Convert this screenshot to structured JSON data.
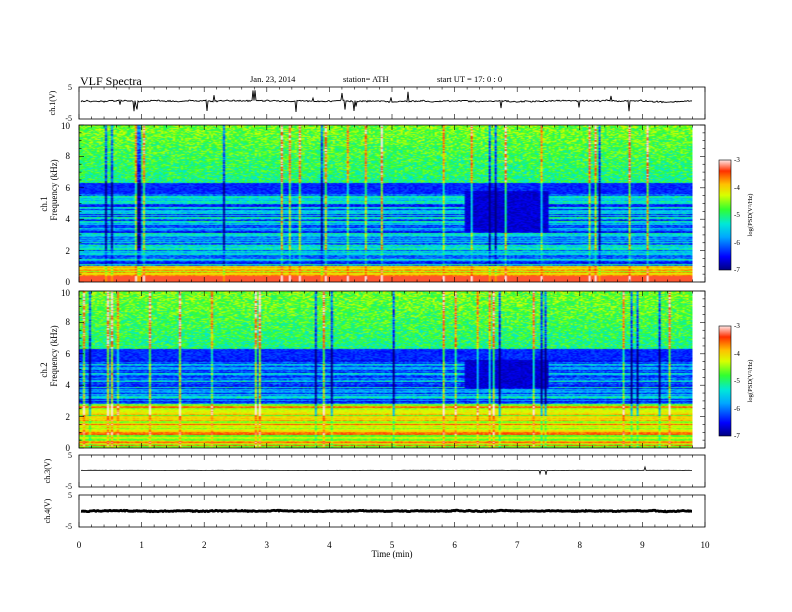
{
  "header": {
    "title": "VLF  Spectra",
    "date": "Jan.  23,  2014",
    "station": "station= ATH",
    "start": "start  UT  =    17: 0  : 0"
  },
  "chart_data": {
    "type": "heatmap",
    "xlabel": "Time  (min)",
    "xlim": [
      0,
      10
    ],
    "x_ticks": [
      "0",
      "1",
      "2",
      "3",
      "4",
      "5",
      "6",
      "7",
      "8",
      "9",
      "10"
    ],
    "data_end_min": 9.8,
    "panels": [
      {
        "id": "ch1",
        "type": "line",
        "ylabel": "ch.1(V)",
        "ylim": [
          -5,
          5
        ],
        "y_ticks": [
          "5",
          "-5"
        ],
        "baseline_v": 0.6,
        "noise_v": 0.4
      },
      {
        "id": "spec1",
        "type": "heatmap",
        "ylabel": "Frequency  (kHz)",
        "channel_label": "ch.1",
        "ylim": [
          0,
          10
        ],
        "y_ticks": [
          "0",
          "2",
          "4",
          "6",
          "8",
          "10"
        ],
        "colorbar": {
          "label": "log(PSD(V²/Hz)",
          "range": [
            -7,
            -3
          ],
          "ticks": [
            "-3",
            "-4",
            "-5",
            "-6",
            "-7"
          ]
        },
        "features": {
          "strong_low_band_khz": [
            0,
            1.0
          ],
          "quiet_gap_start_min": 6.15,
          "quiet_gap_end_min": 7.5,
          "quiet_gap_khz": [
            3.2,
            5.8
          ]
        }
      },
      {
        "id": "spec2",
        "type": "heatmap",
        "ylabel": "Frequency  (kHz)",
        "channel_label": "ch.2",
        "ylim": [
          0,
          10
        ],
        "y_ticks": [
          "0",
          "2",
          "4",
          "6",
          "8",
          "10"
        ],
        "colorbar": {
          "label": "log(PSD(V²/Hz)",
          "range": [
            -7,
            -3
          ],
          "ticks": [
            "-3",
            "-4",
            "-5",
            "-6",
            "-7"
          ]
        },
        "features": {
          "strong_low_band_khz": [
            0,
            2.8
          ],
          "quiet_gap_start_min": 6.15,
          "quiet_gap_end_min": 7.5,
          "quiet_gap_khz": [
            3.8,
            5.6
          ]
        }
      },
      {
        "id": "ch3",
        "type": "line",
        "ylabel": "ch.3(V)",
        "ylim": [
          -5,
          5
        ],
        "y_ticks": [
          "5",
          "-5"
        ],
        "baseline_v": 0.2,
        "noise_v": 0.05
      },
      {
        "id": "ch4",
        "type": "line",
        "ylabel": "ch.4(V)",
        "ylim": [
          -5,
          5
        ],
        "y_ticks": [
          "5",
          "-5"
        ],
        "baseline_v": 0.0,
        "noise_v": 0.25
      }
    ]
  }
}
